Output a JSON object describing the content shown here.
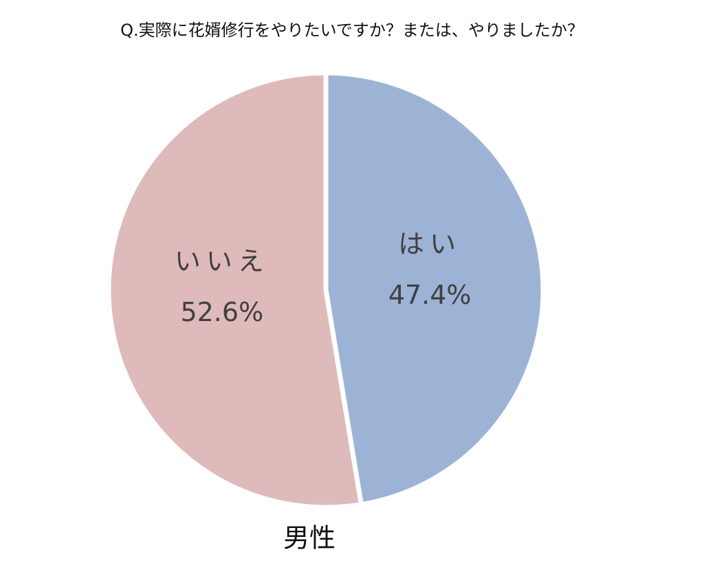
{
  "chart_data": {
    "type": "pie",
    "title": "Q.実際に花婿修行をやりたいですか？または、やりましたか？",
    "subtitle": "男性",
    "categories": [
      "はい",
      "いいえ"
    ],
    "values": [
      47.4,
      52.6
    ],
    "value_labels": [
      "47.4%",
      "52.6%"
    ],
    "colors": [
      "#9db3d6",
      "#dfbaba"
    ]
  }
}
